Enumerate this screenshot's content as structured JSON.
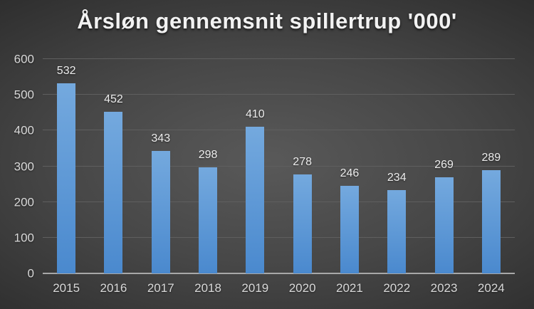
{
  "title": "Årsløn gennemsnit spillertrup '000'",
  "colors": {
    "background_center": "#595959",
    "background_edge": "#232323",
    "bar_top": "#74A9DE",
    "bar_bottom": "#4A89CE",
    "gridline": "#5f5f5f",
    "axis_line": "#a8a8a8",
    "tick_label": "#d9d9d9",
    "data_label": "#ededed",
    "title_color": "#f2f2f2"
  },
  "chart_data": {
    "type": "bar",
    "title": "Årsløn gennemsnit spillertrup '000'",
    "categories": [
      "2015",
      "2016",
      "2017",
      "2018",
      "2019",
      "2020",
      "2021",
      "2022",
      "2023",
      "2024"
    ],
    "values": [
      532,
      452,
      343,
      298,
      410,
      278,
      246,
      234,
      269,
      289
    ],
    "xlabel": "",
    "ylabel": "",
    "ylim": [
      0,
      600
    ],
    "yticks": [
      0,
      100,
      200,
      300,
      400,
      500,
      600
    ],
    "grid": true,
    "legend": false
  }
}
